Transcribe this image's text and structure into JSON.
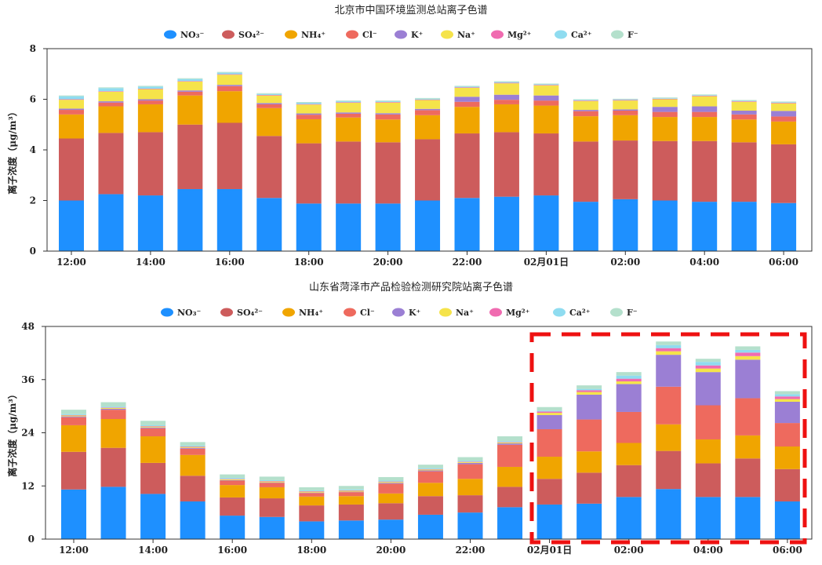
{
  "colors": {
    "NO3": "#1e90ff",
    "SO4": "#cd5c5c",
    "NH4": "#f0a500",
    "Cl": "#ee6a5e",
    "K": "#9b7fd4",
    "Na": "#f5e34a",
    "Mg": "#f06bb0",
    "Ca": "#8fdcf0",
    "F": "#b4e0cc",
    "highlight": "#ee1111"
  },
  "chart_data": [
    {
      "type": "bar",
      "stacked": true,
      "title": "北京市中国环境监测总站离子色谱",
      "ylabel": "离子浓度（μg/m³）",
      "ylim": [
        0,
        8
      ],
      "yticks": [
        "0",
        "2",
        "4",
        "6",
        "8"
      ],
      "xtick_labels": [
        "12:00",
        "14:00",
        "16:00",
        "18:00",
        "20:00",
        "22:00",
        "02月01日",
        "02:00",
        "04:00",
        "06:00"
      ],
      "legend": [
        "NO₃⁻",
        "SO₄²⁻",
        "NH₄⁺",
        "Cl⁻",
        "K⁺",
        "Na⁺",
        "Mg²⁺",
        "Ca²⁺",
        "F⁻"
      ],
      "series": [
        {
          "name": "NO₃⁻",
          "key": "NO3",
          "values": [
            2.0,
            2.25,
            2.2,
            2.45,
            2.45,
            2.1,
            1.88,
            1.88,
            1.88,
            2.0,
            2.1,
            2.15,
            2.2,
            1.95,
            2.05,
            2.0,
            1.95,
            1.95,
            1.9
          ]
        },
        {
          "name": "SO₄²⁻",
          "key": "SO4",
          "values": [
            2.45,
            2.42,
            2.5,
            2.55,
            2.62,
            2.45,
            2.38,
            2.45,
            2.42,
            2.42,
            2.55,
            2.55,
            2.45,
            2.38,
            2.32,
            2.35,
            2.4,
            2.35,
            2.32
          ]
        },
        {
          "name": "NH₄⁺",
          "key": "NH4",
          "values": [
            0.95,
            1.05,
            1.1,
            1.15,
            1.25,
            1.1,
            0.95,
            0.95,
            0.9,
            0.95,
            1.05,
            1.1,
            1.1,
            1.0,
            1.0,
            0.95,
            0.95,
            0.9,
            0.9
          ]
        },
        {
          "name": "Cl⁻",
          "key": "Cl",
          "values": [
            0.18,
            0.15,
            0.15,
            0.15,
            0.2,
            0.15,
            0.18,
            0.15,
            0.2,
            0.2,
            0.2,
            0.18,
            0.2,
            0.2,
            0.18,
            0.2,
            0.2,
            0.2,
            0.2
          ]
        },
        {
          "name": "K⁺",
          "key": "K",
          "values": [
            0.05,
            0.05,
            0.05,
            0.05,
            0.05,
            0.05,
            0.05,
            0.05,
            0.05,
            0.05,
            0.2,
            0.2,
            0.2,
            0.05,
            0.05,
            0.2,
            0.22,
            0.15,
            0.22
          ]
        },
        {
          "name": "Na⁺",
          "key": "Na",
          "values": [
            0.35,
            0.38,
            0.4,
            0.35,
            0.4,
            0.3,
            0.35,
            0.38,
            0.42,
            0.35,
            0.35,
            0.45,
            0.4,
            0.35,
            0.35,
            0.3,
            0.4,
            0.35,
            0.3
          ]
        },
        {
          "name": "Mg²⁺",
          "key": "Mg",
          "values": [
            0.02,
            0.02,
            0.02,
            0.02,
            0.02,
            0.02,
            0.02,
            0.02,
            0.02,
            0.02,
            0.02,
            0.02,
            0.02,
            0.02,
            0.02,
            0.02,
            0.02,
            0.02,
            0.02
          ]
        },
        {
          "name": "Ca²⁺",
          "key": "Ca",
          "values": [
            0.12,
            0.12,
            0.08,
            0.08,
            0.06,
            0.04,
            0.05,
            0.04,
            0.03,
            0.03,
            0.03,
            0.03,
            0.02,
            0.02,
            0.02,
            0.02,
            0.02,
            0.02,
            0.02
          ]
        },
        {
          "name": "F⁻",
          "key": "F",
          "values": [
            0.03,
            0.03,
            0.03,
            0.03,
            0.03,
            0.03,
            0.03,
            0.03,
            0.03,
            0.03,
            0.03,
            0.03,
            0.03,
            0.03,
            0.03,
            0.03,
            0.03,
            0.03,
            0.03
          ]
        }
      ]
    },
    {
      "type": "bar",
      "stacked": true,
      "title": "山东省菏泽市产品检验检测研究院站离子色谱",
      "ylabel": "离子浓度（μg/m³）",
      "ylim": [
        0,
        48
      ],
      "yticks": [
        "0",
        "12",
        "24",
        "36",
        "48"
      ],
      "xtick_labels": [
        "12:00",
        "14:00",
        "16:00",
        "18:00",
        "20:00",
        "22:00",
        "02月01日",
        "02:00",
        "04:00",
        "06:00"
      ],
      "legend": [
        "NO₃⁻",
        "SO₄²⁻",
        "NH₄⁺",
        "Cl⁻",
        "K⁺",
        "Na⁺",
        "Mg²⁺",
        "Ca²⁺",
        "F⁻"
      ],
      "highlight_from_index": 12,
      "series": [
        {
          "name": "NO₃⁻",
          "key": "NO3",
          "values": [
            11.2,
            11.8,
            10.2,
            8.5,
            5.3,
            5.0,
            4.0,
            4.2,
            4.4,
            5.5,
            6.0,
            7.2,
            7.8,
            8.0,
            9.5,
            11.3,
            9.5,
            9.5,
            8.5
          ]
        },
        {
          "name": "SO₄²⁻",
          "key": "SO4",
          "values": [
            8.5,
            8.8,
            7.0,
            5.8,
            4.1,
            4.2,
            3.6,
            3.6,
            3.7,
            4.2,
            3.9,
            4.6,
            5.8,
            7.0,
            7.2,
            8.6,
            7.6,
            8.7,
            7.3
          ]
        },
        {
          "name": "NH₄⁺",
          "key": "NH4",
          "values": [
            6.0,
            6.5,
            6.0,
            4.7,
            2.8,
            2.5,
            2.0,
            1.9,
            2.2,
            3.0,
            3.7,
            4.5,
            5.0,
            4.8,
            5.0,
            6.0,
            5.4,
            5.2,
            5.1
          ]
        },
        {
          "name": "Cl⁻",
          "key": "Cl",
          "values": [
            1.8,
            2.1,
            1.8,
            1.4,
            1.0,
            1.0,
            0.8,
            0.9,
            2.2,
            2.6,
            3.3,
            5.0,
            6.2,
            7.2,
            7.0,
            8.5,
            7.7,
            8.4,
            5.3
          ]
        },
        {
          "name": "K⁺",
          "key": "K",
          "values": [
            0.2,
            0.2,
            0.2,
            0.2,
            0.1,
            0.1,
            0.1,
            0.1,
            0.2,
            0.2,
            0.3,
            0.3,
            3.2,
            5.6,
            6.3,
            7.2,
            7.5,
            8.7,
            4.8
          ]
        },
        {
          "name": "Na⁺",
          "key": "Na",
          "values": [
            0.2,
            0.2,
            0.2,
            0.2,
            0.2,
            0.2,
            0.2,
            0.2,
            0.2,
            0.2,
            0.2,
            0.2,
            0.5,
            0.6,
            0.6,
            0.8,
            0.8,
            0.8,
            0.6
          ]
        },
        {
          "name": "Mg²⁺",
          "key": "Mg",
          "values": [
            0.1,
            0.1,
            0.1,
            0.1,
            0.1,
            0.1,
            0.1,
            0.1,
            0.1,
            0.1,
            0.1,
            0.1,
            0.3,
            0.4,
            0.6,
            0.7,
            0.7,
            0.8,
            0.6
          ]
        },
        {
          "name": "Ca²⁺",
          "key": "Ca",
          "values": [
            0.2,
            0.2,
            0.2,
            0.2,
            0.2,
            0.2,
            0.2,
            0.2,
            0.2,
            0.2,
            0.2,
            0.2,
            0.2,
            0.3,
            0.7,
            0.7,
            0.8,
            0.6,
            0.5
          ]
        },
        {
          "name": "F⁻",
          "key": "F",
          "values": [
            1.0,
            1.0,
            1.0,
            0.8,
            0.8,
            0.8,
            0.7,
            0.8,
            0.8,
            0.8,
            0.8,
            1.1,
            0.8,
            0.8,
            0.8,
            0.8,
            0.7,
            0.8,
            0.7
          ]
        }
      ]
    }
  ]
}
